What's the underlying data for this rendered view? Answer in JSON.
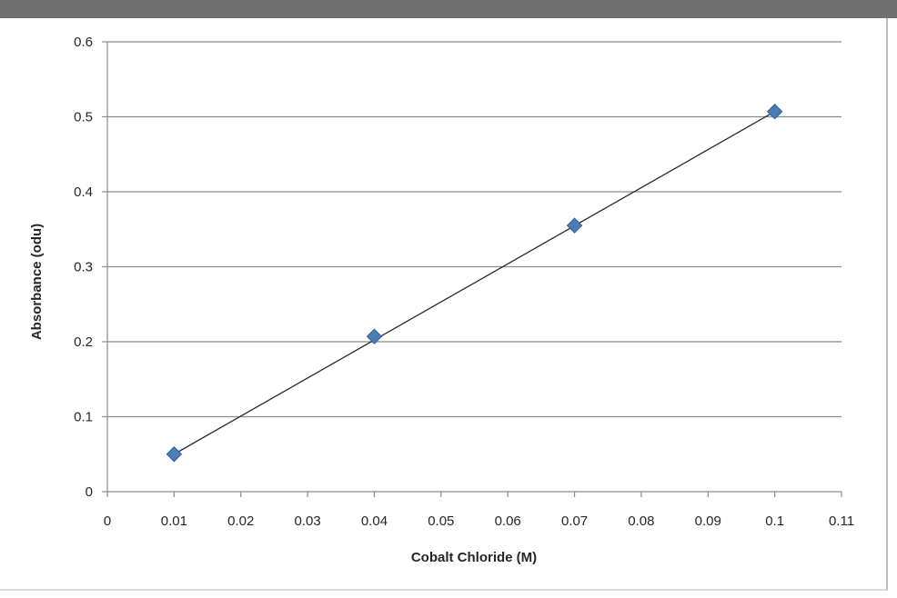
{
  "chart_data": {
    "type": "scatter",
    "title": "",
    "xlabel": "Cobalt Chloride (M)",
    "ylabel": "Absorbance (odu)",
    "xlim": [
      0,
      0.11
    ],
    "ylim": [
      0,
      0.6
    ],
    "x_ticks": [
      "0",
      "0.01",
      "0.02",
      "0.03",
      "0.04",
      "0.05",
      "0.06",
      "0.07",
      "0.08",
      "0.09",
      "0.1",
      "0.11"
    ],
    "y_ticks": [
      "0",
      "0.1",
      "0.2",
      "0.3",
      "0.4",
      "0.5",
      "0.6"
    ],
    "x_tick_values": [
      0,
      0.01,
      0.02,
      0.03,
      0.04,
      0.05,
      0.06,
      0.07,
      0.08,
      0.09,
      0.1,
      0.11
    ],
    "y_tick_values": [
      0,
      0.1,
      0.2,
      0.3,
      0.4,
      0.5,
      0.6
    ],
    "grid": "horizontal",
    "legend": "none",
    "series": [
      {
        "points": [
          {
            "x": 0.01,
            "y": 0.05
          },
          {
            "x": 0.04,
            "y": 0.207
          },
          {
            "x": 0.07,
            "y": 0.355
          },
          {
            "x": 0.1,
            "y": 0.507
          }
        ]
      }
    ],
    "trendline": {
      "type": "linear",
      "from": {
        "x": 0.01,
        "y": 0.05
      },
      "to": {
        "x": 0.1,
        "y": 0.507
      }
    },
    "colors": {
      "marker": "#4a7ebb",
      "marker_stroke": "#2f5f96",
      "trendline": "#2b2b2b",
      "gridline": "#8c8c8c",
      "axis": "#8c8c8c"
    }
  }
}
